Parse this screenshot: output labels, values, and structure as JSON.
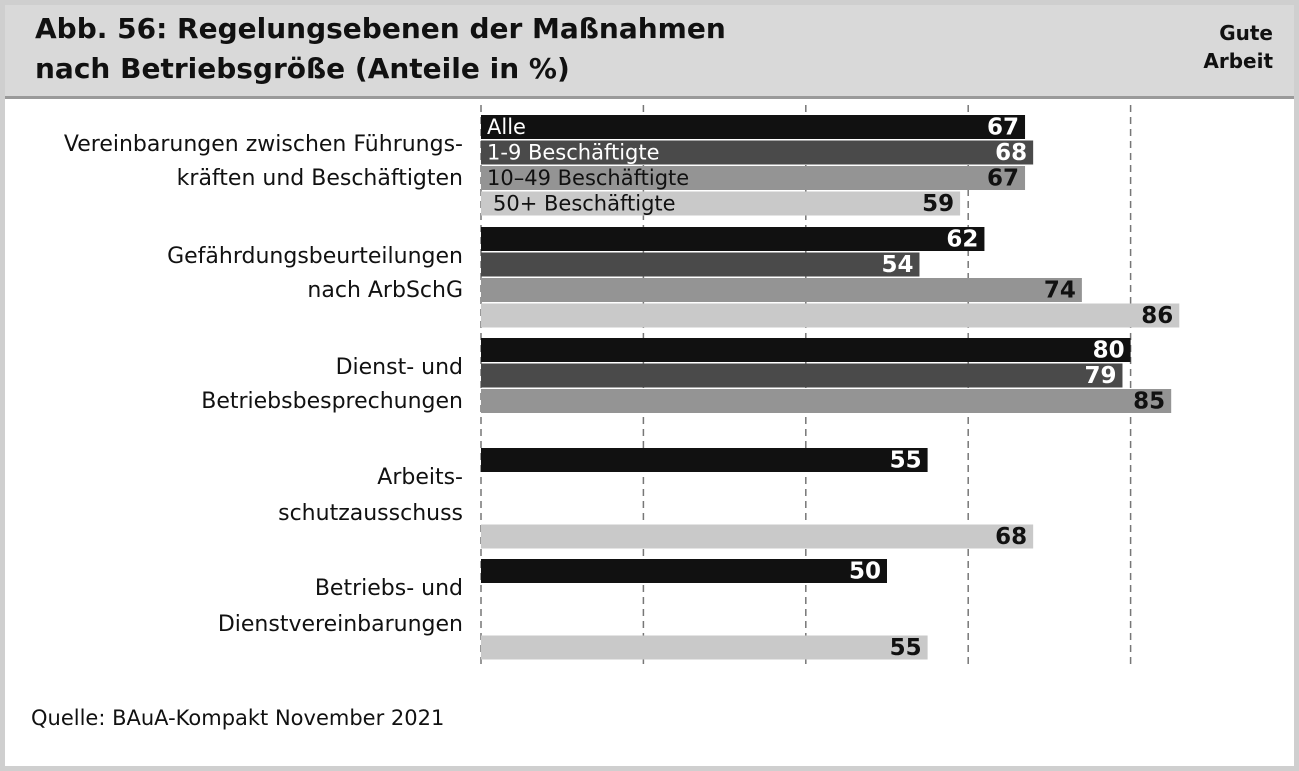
{
  "title_lines": [
    "Abb. 56: Regelungsebenen der Maßnahmen",
    "nach Betriebsgröße (Anteile in %)"
  ],
  "logo_lines": [
    "Gute",
    "Arbeit"
  ],
  "source": "Quelle: BAuA-Kompakt November 2021",
  "colors": {
    "series": [
      "#111111",
      "#4a4a4a",
      "#949494",
      "#c9c9c9"
    ],
    "label_light": "#ffffff",
    "label_dark": "#111111",
    "grid": "#777777"
  },
  "chart_data": {
    "type": "bar",
    "orientation": "horizontal",
    "categories": [
      [
        "Vereinbarungen zwischen Führungs-",
        "kräften und Beschäftigten"
      ],
      [
        "Gefährdungsbeurteilungen",
        "nach ArbSchG"
      ],
      [
        "Dienst- und",
        "Betriebsbesprechungen"
      ],
      [
        "Arbeits-",
        "schutzausschuss"
      ],
      [
        "Betriebs- und",
        "Dienstvereinbarungen"
      ]
    ],
    "series": [
      {
        "name": "Alle",
        "values": [
          67,
          62,
          80,
          55,
          50
        ]
      },
      {
        "name": "1-9 Beschäftigte",
        "values": [
          68,
          54,
          79,
          null,
          null
        ]
      },
      {
        "name": "10–49 Beschäftigte",
        "values": [
          67,
          74,
          85,
          null,
          null
        ]
      },
      {
        "name": "50+ Beschäftigte",
        "values": [
          59,
          86,
          null,
          68,
          55
        ]
      }
    ],
    "legend": "inside-bars-first-group",
    "xlim": [
      0,
      100
    ],
    "x_grid": [
      0,
      20,
      40,
      60,
      80
    ],
    "grid": true,
    "grid_style": "dashed"
  }
}
